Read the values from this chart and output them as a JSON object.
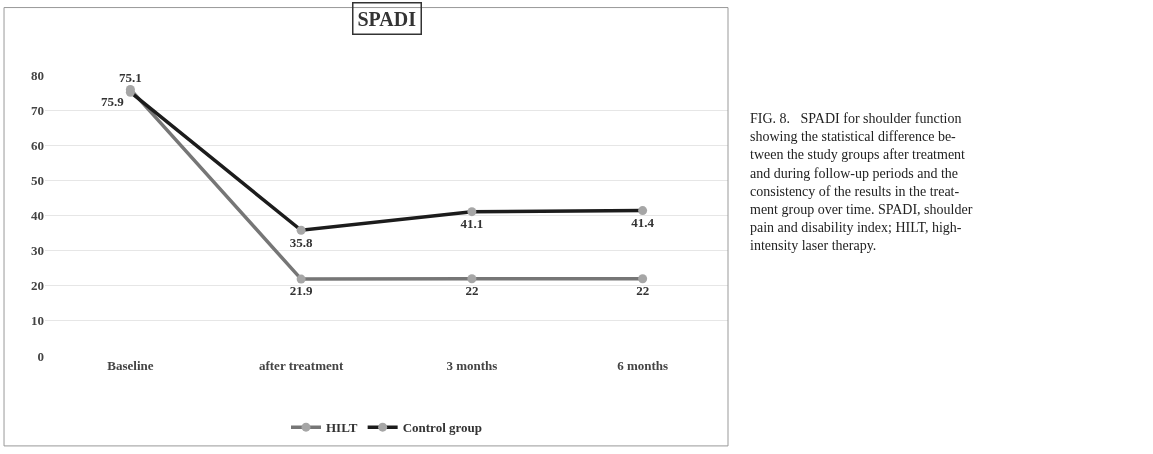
{
  "chart_data": {
    "type": "line",
    "title": "SPADI",
    "categories": [
      "Baseline",
      "after treatment",
      "3 months",
      "6 months"
    ],
    "series": [
      {
        "name": "HILT",
        "color": "#767676",
        "values": [
          75.9,
          21.9,
          22,
          22
        ]
      },
      {
        "name": "Control group",
        "color": "#1c1c1c",
        "values": [
          75.1,
          35.8,
          41.1,
          41.4
        ]
      }
    ],
    "ylim": [
      0,
      80
    ],
    "yticks": [
      0,
      10,
      20,
      30,
      40,
      50,
      60,
      70,
      80
    ],
    "grid": "y",
    "legend": "bottom",
    "marker": "circle",
    "line_style": "solid",
    "data_labels": true,
    "annotations": [
      "FIG. 8.   SPADI for shoulder function\nshowing the statistical difference be-\ntween the study groups after treatment\nand during follow-up periods and the\nconsistency of the results in the treat-\nment group over time. SPADI, shoulder\npain and disability index; HILT, high-\nintensity laser therapy."
    ]
  }
}
